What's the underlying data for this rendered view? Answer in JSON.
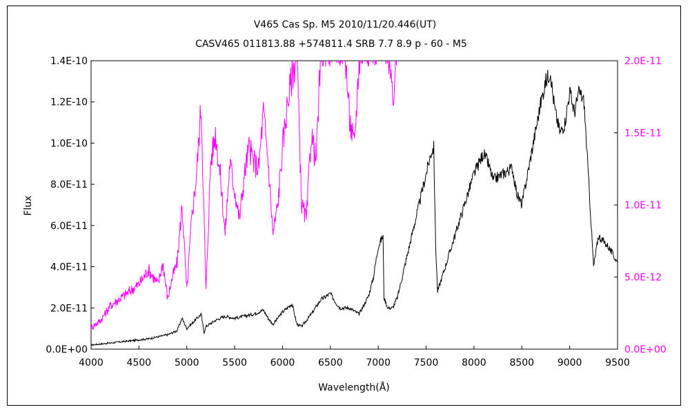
{
  "chart_data": {
    "type": "line",
    "title": "V465 Cas    Sp. M5    2010/11/20.446(UT)",
    "subtitle": "CASV465 011813.88 +574811.4 SRB 7.7 8.9 p - 60 - M5",
    "xlabel": "Wavelength(Å)",
    "ylabel": "Flux",
    "xlim": [
      4000,
      9500
    ],
    "ylim_left": [
      0,
      1.4e-10
    ],
    "ylim_right": [
      0,
      2e-11
    ],
    "x_ticks": [
      "4000",
      "4500",
      "5000",
      "5500",
      "6000",
      "6500",
      "7000",
      "7500",
      "8000",
      "8500",
      "9000",
      "9500"
    ],
    "y_ticks_left": [
      "0.0E+00",
      "2.0E-11",
      "4.0E-11",
      "6.0E-11",
      "8.0E-11",
      "1.0E-10",
      "1.2E-10",
      "1.4E-10"
    ],
    "y_ticks_right": [
      "0.0E+00",
      "5.0E-12",
      "1.0E-11",
      "1.5E-11",
      "2.0E-11"
    ],
    "grid": false,
    "legend": "none",
    "colors": {
      "primary": "#000000",
      "secondary": "#ff00ff"
    },
    "series": [
      {
        "axis": "left",
        "color": "#000000",
        "x": [
          4000,
          4200,
          4400,
          4600,
          4700,
          4800,
          4900,
          4950,
          5000,
          5150,
          5180,
          5200,
          5300,
          5400,
          5500,
          5600,
          5700,
          5800,
          5850,
          5900,
          6000,
          6100,
          6150,
          6200,
          6300,
          6400,
          6500,
          6550,
          6600,
          6700,
          6800,
          6900,
          6950,
          7000,
          7050,
          7060,
          7100,
          7150,
          7200,
          7300,
          7400,
          7500,
          7550,
          7580,
          7600,
          7620,
          7700,
          7800,
          7900,
          8000,
          8100,
          8150,
          8200,
          8300,
          8400,
          8450,
          8500,
          8600,
          8700,
          8750,
          8800,
          8820,
          8850,
          8900,
          8950,
          9000,
          9050,
          9100,
          9150,
          9200,
          9250,
          9300,
          9400,
          9500
        ],
        "y": [
          2e-12,
          3e-12,
          4e-12,
          5e-12,
          6e-12,
          7e-12,
          9e-12,
          1.5e-11,
          1e-11,
          1.7e-11,
          8e-12,
          1.1e-11,
          1.4e-11,
          1.6e-11,
          1.5e-11,
          1.6e-11,
          1.7e-11,
          1.9e-11,
          1.5e-11,
          1.2e-11,
          1.8e-11,
          2.2e-11,
          1.2e-11,
          1.1e-11,
          1.7e-11,
          2.4e-11,
          2.7e-11,
          2.3e-11,
          2e-11,
          2e-11,
          1.7e-11,
          2.6e-11,
          3.5e-11,
          5e-11,
          5.5e-11,
          2.5e-11,
          2e-11,
          2e-11,
          2.5e-11,
          4.5e-11,
          6.5e-11,
          8.5e-11,
          9.5e-11,
          9.8e-11,
          5e-11,
          2.8e-11,
          4e-11,
          5.5e-11,
          7e-11,
          8.5e-11,
          9.5e-11,
          9e-11,
          8.2e-11,
          8.5e-11,
          8.8e-11,
          7.5e-11,
          7e-11,
          9.5e-11,
          1.2e-10,
          1.3e-10,
          1.35e-10,
          1.25e-10,
          1.15e-10,
          1.05e-10,
          1.1e-10,
          1.25e-10,
          1.15e-10,
          1.25e-10,
          1.2e-10,
          8e-11,
          4e-11,
          5.5e-11,
          5e-11,
          4.2e-11
        ]
      },
      {
        "axis": "right",
        "color": "#ff00ff",
        "x": [
          4000,
          4100,
          4200,
          4300,
          4400,
          4500,
          4600,
          4700,
          4750,
          4800,
          4850,
          4900,
          4950,
          5000,
          5050,
          5100,
          5150,
          5200,
          5250,
          5300,
          5350,
          5400,
          5450,
          5500,
          5550,
          5600,
          5650,
          5700,
          5750,
          5800,
          5850,
          5900,
          5950,
          6000,
          6050,
          6100,
          6150,
          6200,
          6250,
          6300,
          6350,
          6400,
          6450,
          6500,
          6550,
          6600,
          6650,
          6700,
          6750,
          6800,
          6850,
          6900,
          6950,
          7000,
          7050,
          7100,
          7150,
          7200
        ],
        "y": [
          1.5e-12,
          2e-12,
          3e-12,
          3.5e-12,
          4e-12,
          4.5e-12,
          5.5e-12,
          4.5e-12,
          6e-12,
          3.5e-12,
          5e-12,
          6e-12,
          1e-11,
          4e-12,
          9e-12,
          1.2e-11,
          1.7e-11,
          4e-12,
          1.3e-11,
          1.5e-11,
          1.2e-11,
          8e-12,
          1.3e-11,
          1.1e-11,
          9e-12,
          1.2e-11,
          1.4e-11,
          1.3e-11,
          1.25e-11,
          1.65e-11,
          1.3e-11,
          8e-12,
          1e-11,
          1.4e-11,
          1.7e-11,
          1.9e-11,
          2.05e-11,
          1e-11,
          9e-12,
          1.5e-11,
          1.3e-11,
          2.05e-11,
          2.1e-11,
          2.1e-11,
          2.1e-11,
          2.1e-11,
          2.1e-11,
          1.6e-11,
          1.4e-11,
          2e-11,
          2.1e-11,
          2.1e-11,
          2.1e-11,
          2.1e-11,
          2.1e-11,
          2.1e-11,
          1.7e-11,
          2.1e-11
        ]
      }
    ]
  }
}
